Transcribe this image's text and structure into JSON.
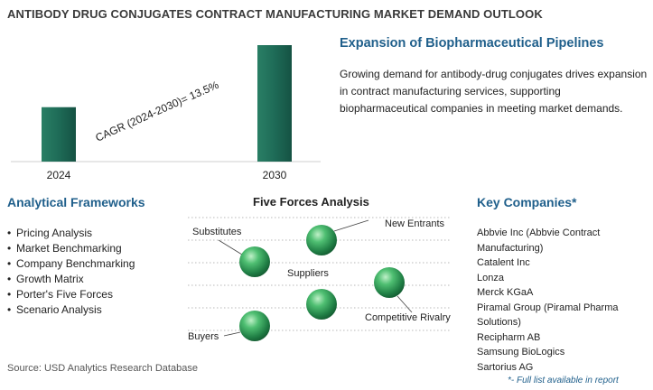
{
  "title": "ANTIBODY DRUG CONJUGATES CONTRACT MANUFACTURING MARKET DEMAND OUTLOOK",
  "chart_data": {
    "type": "bar",
    "categories": [
      "2024",
      "2030"
    ],
    "values": [
      1,
      2.14
    ],
    "annotation": "CAGR (2024-2030)=   13.5%",
    "bar_color": "#1e6b57"
  },
  "expansion": {
    "heading": "Expansion of Biopharmaceutical Pipelines",
    "text": "Growing demand for antibody-drug conjugates drives expansion in contract manufacturing services, supporting biopharmaceutical companies in meeting market demands."
  },
  "frameworks": {
    "heading": "Analytical Frameworks",
    "items": [
      "Pricing Analysis",
      "Market Benchmarking",
      "Company Benchmarking",
      "Growth Matrix",
      "Porter's Five Forces",
      "Scenario Analysis"
    ]
  },
  "five_forces": {
    "heading": "Five Forces Analysis",
    "labels": {
      "substitutes": "Substitutes",
      "new_entrants": "New Entrants",
      "suppliers": "Suppliers",
      "competitive_rivalry": "Competitive Rivalry",
      "buyers": "Buyers"
    }
  },
  "companies": {
    "heading": "Key Companies*",
    "items": [
      "Abbvie Inc (Abbvie Contract Manufacturing)",
      "Catalent Inc",
      "Lonza",
      "Merck KGaA",
      "Piramal Group (Piramal Pharma Solutions)",
      "Recipharm AB",
      "Samsung BioLogics",
      "Sartorius AG"
    ],
    "footnote": "*- Full list available in report"
  },
  "source": "Source: USD Analytics Research Database",
  "colors": {
    "accent": "#1f5f8b",
    "bar": "#1e6b57",
    "sphere": "#2e8b57"
  }
}
